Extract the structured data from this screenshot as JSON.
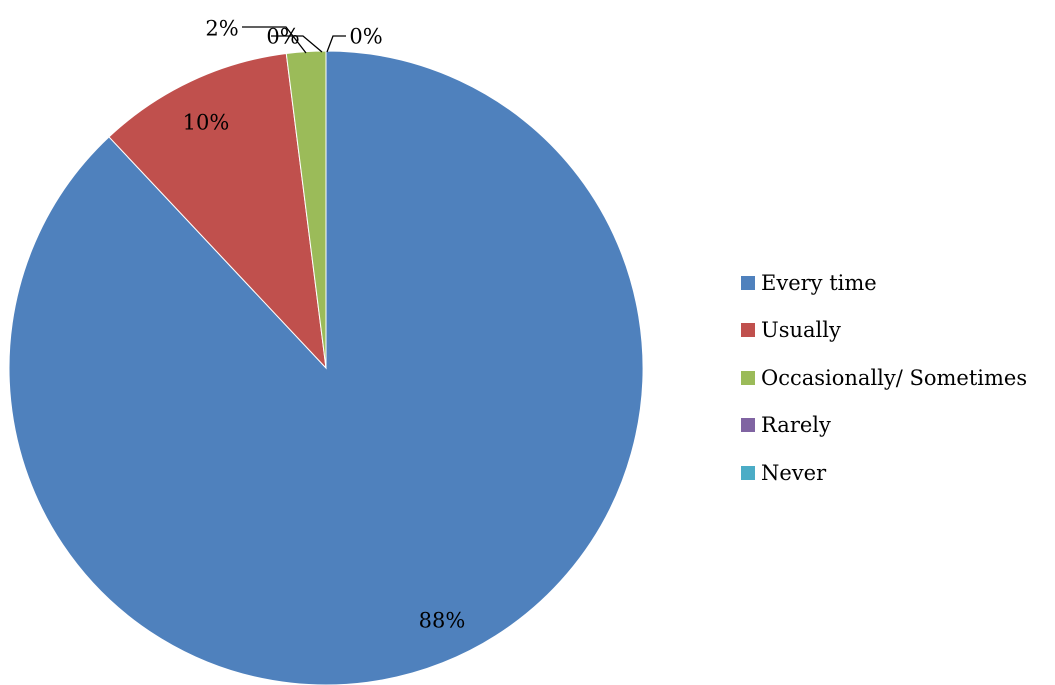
{
  "chart_data": {
    "type": "pie",
    "categories": [
      "Every time",
      "Usually",
      "Occasionally/ Sometimes",
      "Rarely",
      "Never"
    ],
    "values": [
      88,
      10,
      2,
      0,
      0
    ],
    "data_labels": [
      "88%",
      "10%",
      "2%",
      "0%",
      "0%"
    ],
    "colors": [
      "#4F81BD",
      "#C0504D",
      "#9BBB59",
      "#8064A2",
      "#4BACC6"
    ],
    "legend_position": "right",
    "title": ""
  }
}
